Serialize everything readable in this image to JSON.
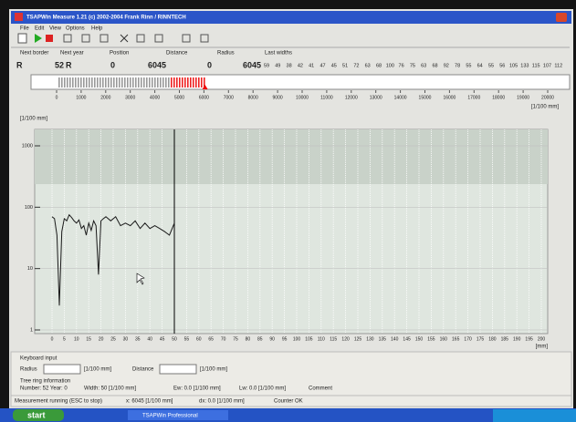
{
  "window": {
    "title": "TSAPWin Measure 1.21 (c) 2002-2004 Frank Rinn / RINNTECH"
  },
  "menu": [
    "File",
    "Edit",
    "View",
    "Options",
    "Help"
  ],
  "fields": {
    "labels": [
      "Next border",
      "Next year",
      "Position",
      "Distance",
      "Radius",
      "Last widths"
    ],
    "next_border_side": "R",
    "next_border": 52,
    "next_year_side": "R",
    "next_year": 0,
    "position": 6045,
    "distance": 0,
    "radius": 6045,
    "last_widths": [
      59,
      49,
      38,
      42,
      41,
      47,
      45,
      51,
      72,
      63,
      68,
      100,
      76,
      75,
      63,
      68,
      92,
      78,
      55,
      64,
      55,
      56,
      105,
      133,
      115,
      107,
      112
    ]
  },
  "ruler": {
    "unit": "[1/100 mm]",
    "xlim": [
      0,
      20000
    ],
    "xticks": [
      0,
      1000,
      2000,
      3000,
      4000,
      5000,
      6000,
      7000,
      8000,
      9000,
      10000,
      11000,
      12000,
      13000,
      14000,
      15000,
      16000,
      17000,
      18000,
      19000,
      20000
    ],
    "position": 6045
  },
  "chart": {
    "type": "line",
    "y_label": "[1/100 mm]",
    "x_label": "[mm]",
    "log_y": true,
    "grid": true,
    "color": "#1a1a1a",
    "x": [
      0,
      1,
      2,
      3,
      4,
      5,
      6,
      7,
      8,
      9,
      10,
      11,
      12,
      13,
      14,
      15,
      16,
      17,
      18,
      19,
      20,
      21,
      22,
      24,
      26,
      28,
      30,
      32,
      34,
      36,
      38,
      40,
      42,
      44,
      46,
      48,
      50
    ],
    "values": [
      70,
      65,
      35,
      2.5,
      40,
      65,
      60,
      75,
      68,
      60,
      55,
      62,
      45,
      50,
      35,
      55,
      42,
      60,
      50,
      8,
      60,
      65,
      70,
      60,
      70,
      50,
      55,
      50,
      60,
      45,
      55,
      45,
      50,
      45,
      40,
      35,
      55
    ],
    "xlim": [
      0,
      200
    ],
    "ylim": [
      1,
      1000
    ],
    "yticks": [
      1,
      10,
      100,
      1000
    ],
    "xticks": [
      0,
      5,
      10,
      15,
      20,
      25,
      30,
      35,
      40,
      45,
      50,
      55,
      60,
      65,
      70,
      75,
      80,
      85,
      90,
      95,
      100,
      105,
      110,
      115,
      120,
      125,
      130,
      135,
      140,
      145,
      150,
      155,
      160,
      165,
      170,
      175,
      180,
      185,
      190,
      195,
      200
    ],
    "cursor_x": 50
  },
  "panel": {
    "keyboard_input": "Keyboard input",
    "radius_label": "Radius",
    "radius_unit": "[1/100 mm]",
    "distance_label": "Distance",
    "distance_unit": "[1/100 mm]",
    "tree_ring_info": "Tree ring information",
    "number_year": "Number: 52   Year: 0",
    "width": "Width: 50 [1/100 mm]",
    "ew": "Ew: 0.0 [1/100 mm]",
    "lw": "Lw: 0.0 [1/100 mm]",
    "comment": "Comment"
  },
  "status": [
    "Measurement running (ESC to stop)",
    "x: 6045 [1/100 mm]",
    "dx: 0.0 [1/100 mm]",
    "Counter OK"
  ],
  "taskbar": {
    "start": "start",
    "task": "TSAPWin Professional"
  }
}
